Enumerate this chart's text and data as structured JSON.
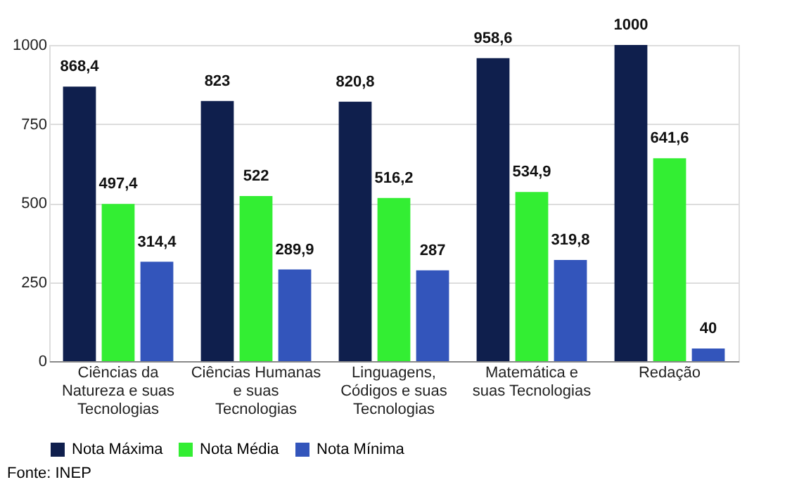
{
  "chart_data": {
    "type": "bar",
    "categories": [
      "Ciências da Natureza e suas Tecnologias",
      "Ciências Humanas e suas Tecnologias",
      "Linguagens, Códigos e suas Tecnologias",
      "Matemática e suas Tecnologias",
      "Redação"
    ],
    "series": [
      {
        "name": "Nota Máxima",
        "color": "#0f1f4d",
        "values": [
          868.4,
          823,
          820.8,
          958.6,
          1000
        ],
        "value_labels": [
          "868,4",
          "823",
          "820,8",
          "958,6",
          "1000"
        ]
      },
      {
        "name": "Nota Média",
        "color": "#33ee33",
        "values": [
          497.4,
          522,
          516.2,
          534.9,
          641.6
        ],
        "value_labels": [
          "497,4",
          "522",
          "516,2",
          "534,9",
          "641,6"
        ]
      },
      {
        "name": "Nota Mínima",
        "color": "#3355bb",
        "values": [
          314.4,
          289.9,
          287,
          319.8,
          40
        ],
        "value_labels": [
          "314,4",
          "289,9",
          "287",
          "319,8",
          "40"
        ]
      }
    ],
    "ylim": [
      0,
      1000
    ],
    "yticks": [
      0,
      250,
      500,
      750,
      1000
    ],
    "grid": "y",
    "legend": "bottom",
    "annotations": [
      "Fonte: INEP"
    ]
  }
}
